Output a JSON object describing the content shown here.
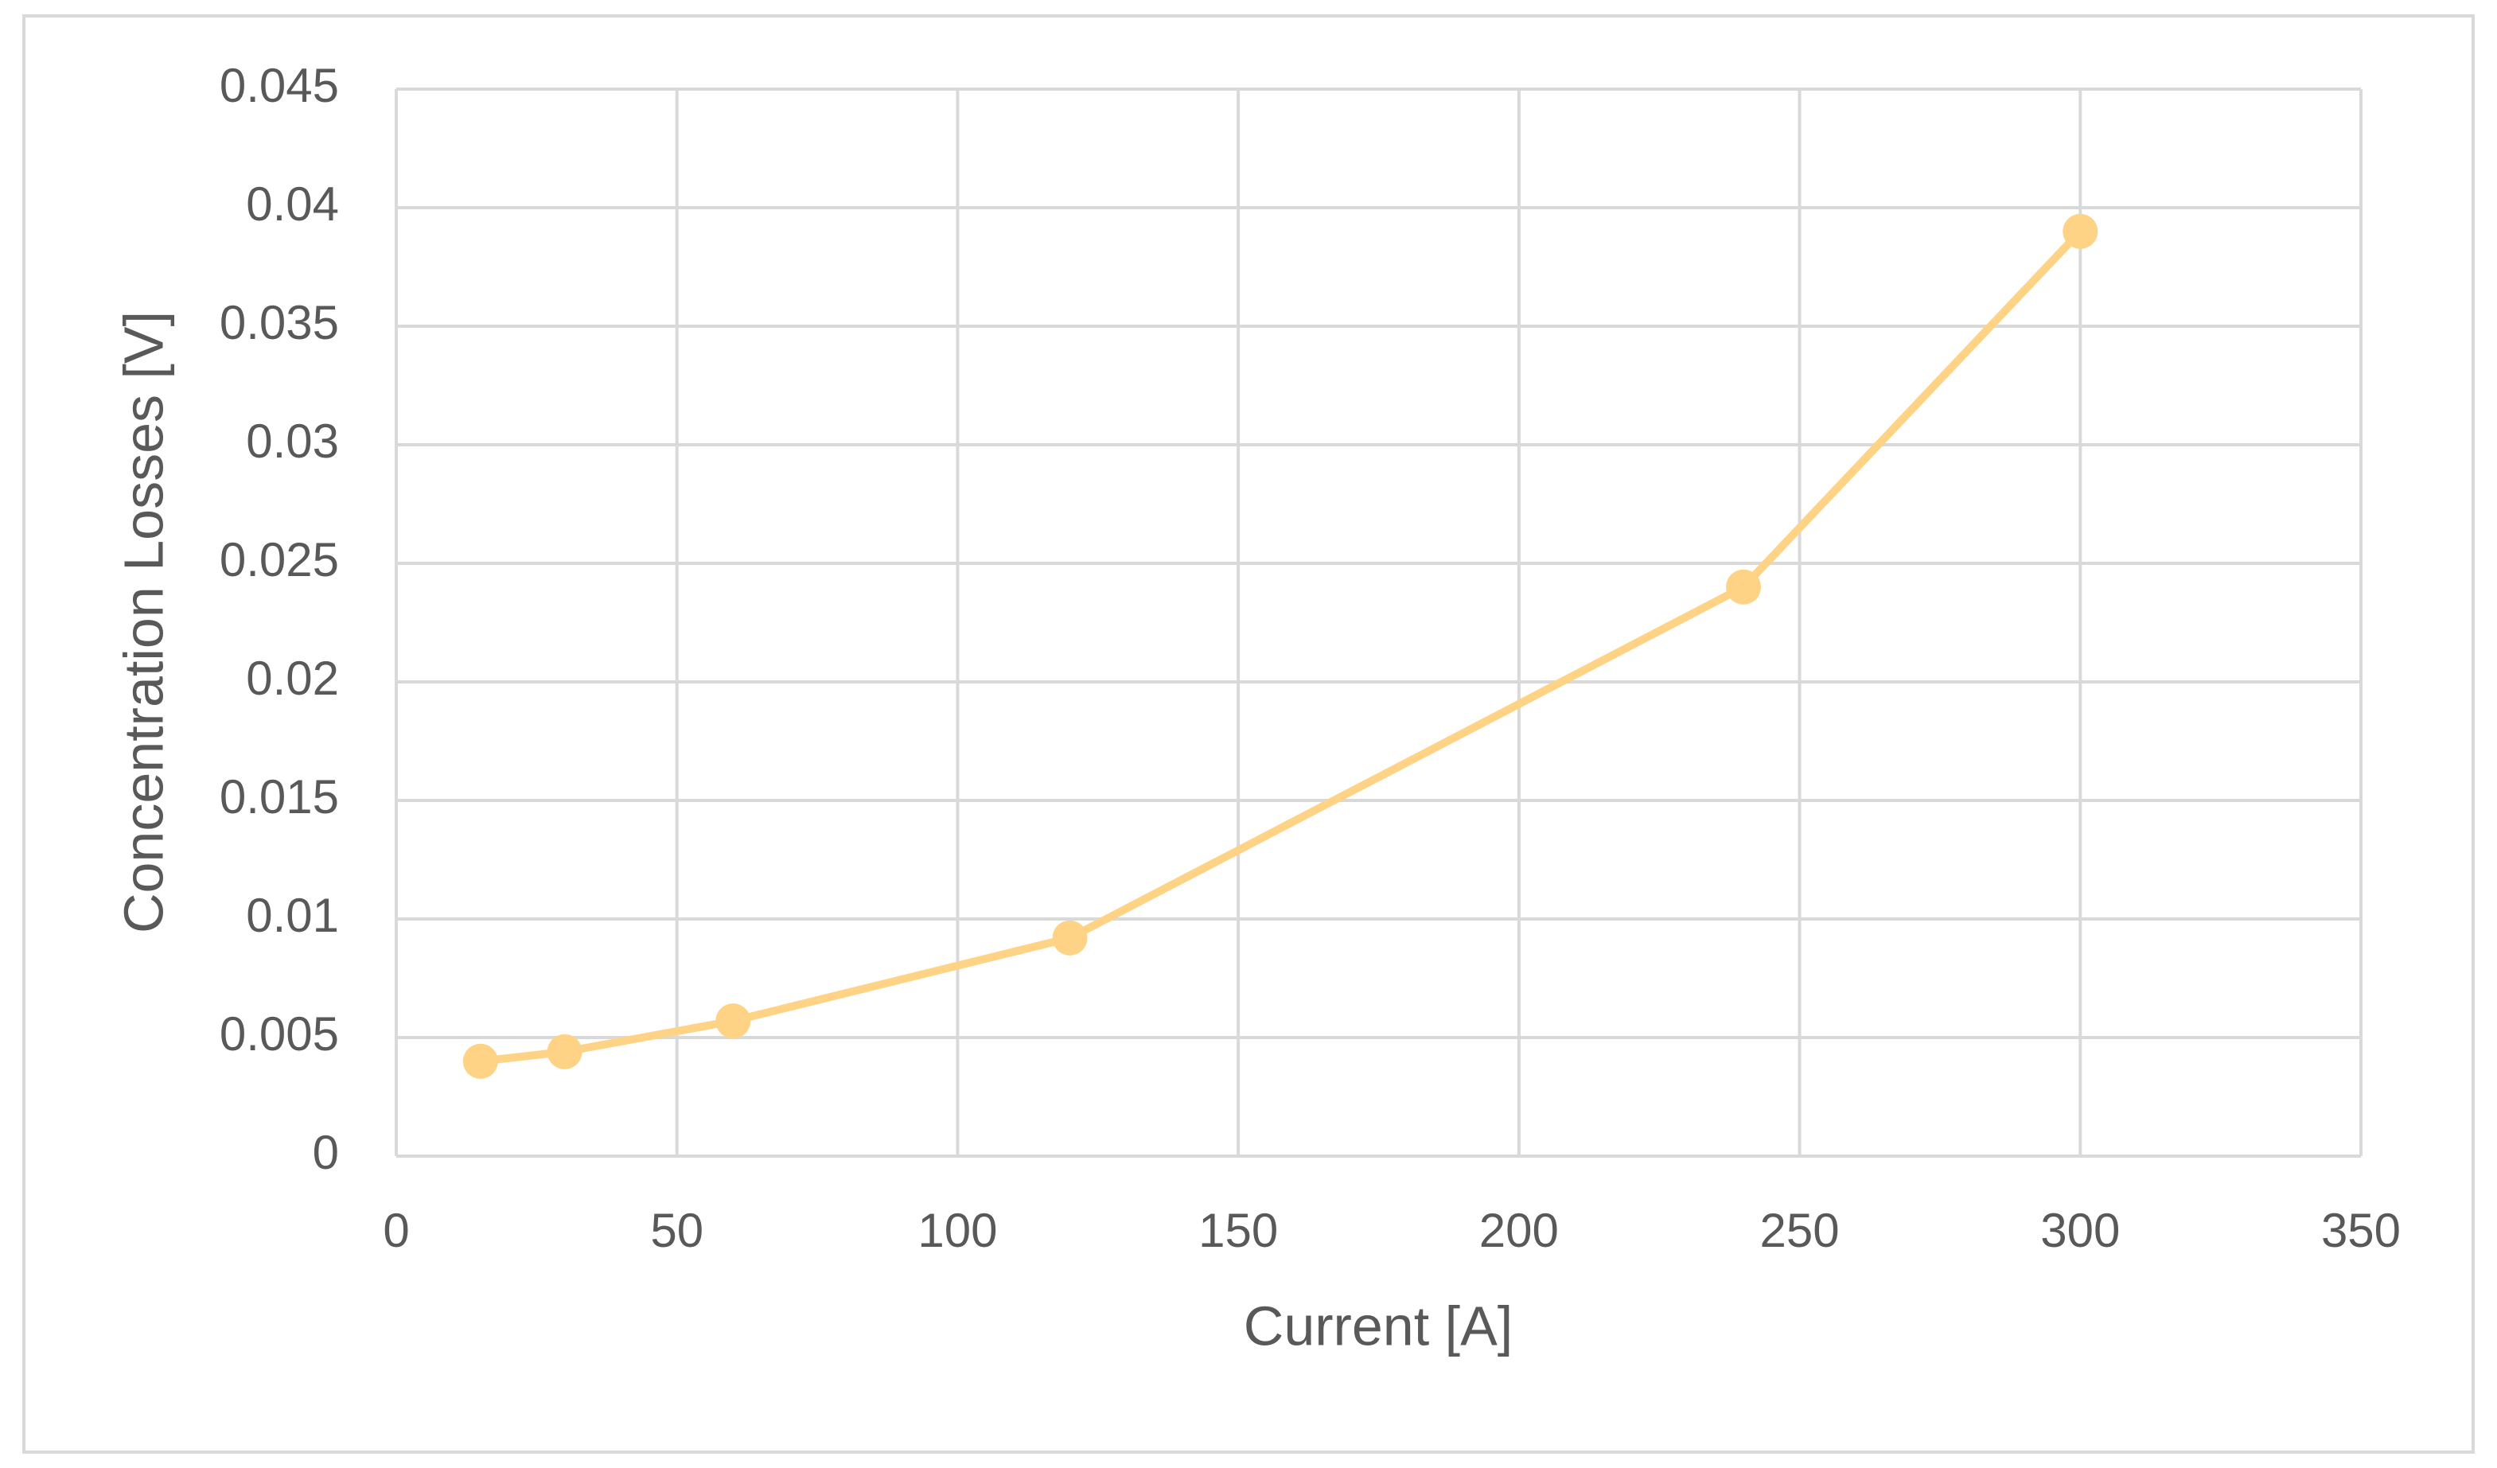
{
  "chart_data": {
    "type": "line",
    "x_label": "Current [A]",
    "y_label": "Concentration Losses [V]",
    "x": [
      15,
      30,
      60,
      120,
      240,
      300
    ],
    "values": [
      0.004,
      0.0044,
      0.0057,
      0.0092,
      0.024,
      0.039
    ],
    "color": "#ffd386",
    "xlim": [
      0,
      350
    ],
    "xticks": [
      0,
      50,
      100,
      150,
      200,
      250,
      300,
      350
    ],
    "ylim": [
      0,
      0.045
    ],
    "yticks": [
      0,
      0.005,
      0.01,
      0.015,
      0.02,
      0.025,
      0.03,
      0.035,
      0.04,
      0.045
    ],
    "grid": true,
    "markers": true
  }
}
